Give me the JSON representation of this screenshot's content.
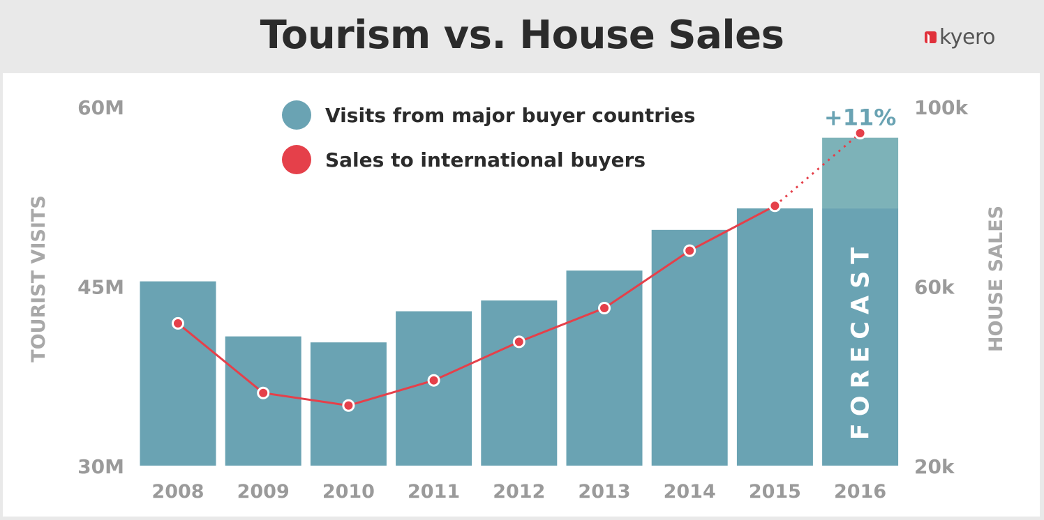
{
  "header": {
    "title": "Tourism vs. House Sales",
    "logo_text": "kyero"
  },
  "chart_data": {
    "type": "bar",
    "title": "Tourism vs. House Sales",
    "categories": [
      "2008",
      "2009",
      "2010",
      "2011",
      "2012",
      "2013",
      "2014",
      "2015",
      "2016"
    ],
    "y_left": {
      "label": "TOURIST VISITS",
      "ylim": [
        30,
        60
      ],
      "ticks": [
        "30M",
        "45M",
        "60M"
      ],
      "tick_values": [
        30,
        45,
        60
      ]
    },
    "y_right": {
      "label": "HOUSE SALES",
      "ylim": [
        20,
        100
      ],
      "ticks": [
        "20k",
        "60k",
        "100k"
      ],
      "tick_values": [
        20,
        60,
        100
      ]
    },
    "series": [
      {
        "name": "Visits from major buyer countries",
        "type": "bar",
        "axis": "left",
        "color": "#6aa3b3",
        "values": [
          45.4,
          40.8,
          40.3,
          42.9,
          43.8,
          46.3,
          49.7,
          51.5,
          51.5
        ],
        "forecast_values": [
          null,
          null,
          null,
          null,
          null,
          null,
          null,
          null,
          57.4
        ],
        "forecast_color": "#7db2b8"
      },
      {
        "name": "Sales to international buyers",
        "type": "line",
        "axis": "right",
        "color": "#e5404a",
        "values": [
          51.7,
          36.2,
          33.4,
          39.0,
          47.6,
          55.1,
          67.9,
          77.9,
          94.1
        ],
        "forecast_from_index": 7
      }
    ],
    "annotations": [
      {
        "text": "+11%",
        "category": "2016",
        "color": "#6aa3b3"
      },
      {
        "text": "FORECAST",
        "category": "2016",
        "color": "#ffffff",
        "orientation": "vertical"
      }
    ],
    "grid": false,
    "legend": "top-left"
  }
}
